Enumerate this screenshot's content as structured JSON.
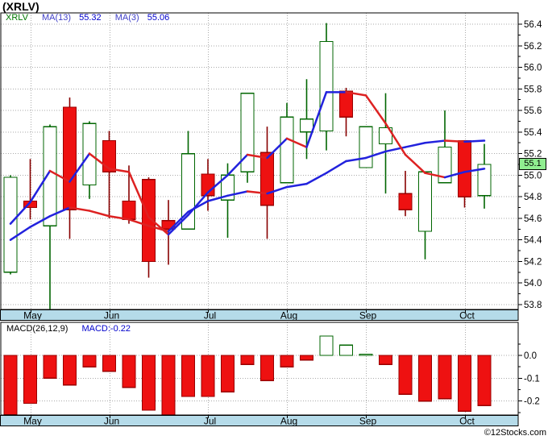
{
  "header": {
    "title": "(XRLV)"
  },
  "legend": {
    "symbol": "XRLV",
    "ma13_label": "MA(13)",
    "ma13_value": "55.32",
    "ma3_label": "MA(3)",
    "ma3_value": "55.06"
  },
  "price_badge": "55.1",
  "macd_legend": {
    "label": "MACD(26,12,9)",
    "value": "MACD:-0.22"
  },
  "watermark": "©12Stocks.com",
  "colors": {
    "candle_up_stroke": "#006600",
    "candle_up_fill": "#ffffff",
    "candle_down_stroke": "#990000",
    "candle_down_fill": "#ee1111",
    "wick_up": "#006600",
    "wick_down": "#880000",
    "ma_rising": "#2222dd",
    "ma_falling": "#dd2222",
    "grid": "#aaaaaa",
    "band_bg": "#b5dbe9",
    "badge_bg": "#90EE90",
    "macd_up": "#006600",
    "macd_down": "#ee1111",
    "border": "#000000"
  },
  "chart_data": {
    "type": "candlestick+macd",
    "symbol": "XRLV",
    "months": [
      "May",
      "Jun",
      "Jul",
      "Aug",
      "Sep",
      "Oct"
    ],
    "month_start_indices": [
      1,
      5,
      10,
      14,
      18,
      23
    ],
    "price_axis_ticks": [
      "56.4",
      "56.2",
      "56.0",
      "55.8",
      "55.6",
      "55.4",
      "55.2",
      "55.0",
      "54.8",
      "54.6",
      "54.4",
      "54.2",
      "54.0",
      "53.8"
    ],
    "price_axis_range": [
      53.8,
      56.4
    ],
    "last_price": 55.1,
    "candles_ohlc": [
      [
        54.1,
        55.0,
        54.08,
        54.98
      ],
      [
        54.76,
        55.15,
        54.59,
        54.7
      ],
      [
        54.53,
        55.47,
        53.76,
        55.45
      ],
      [
        55.63,
        55.72,
        54.41,
        54.68
      ],
      [
        54.91,
        55.5,
        54.78,
        55.48
      ],
      [
        55.32,
        55.41,
        54.6,
        55.03
      ],
      [
        54.76,
        55.09,
        54.55,
        54.59
      ],
      [
        54.96,
        54.98,
        54.05,
        54.2
      ],
      [
        54.58,
        54.77,
        54.17,
        54.5
      ],
      [
        54.5,
        55.41,
        54.5,
        55.2
      ],
      [
        55.01,
        55.15,
        54.67,
        54.81
      ],
      [
        54.77,
        55.11,
        54.42,
        55.0
      ],
      [
        55.03,
        55.76,
        54.93,
        55.76
      ],
      [
        55.21,
        55.45,
        54.41,
        54.72
      ],
      [
        54.93,
        55.67,
        54.93,
        55.54
      ],
      [
        55.4,
        55.89,
        55.15,
        55.52
      ],
      [
        55.41,
        56.41,
        55.23,
        56.24
      ],
      [
        55.78,
        55.81,
        55.36,
        55.54
      ],
      [
        55.07,
        55.45,
        55.07,
        55.45
      ],
      [
        55.29,
        55.76,
        54.83,
        55.44
      ],
      [
        54.83,
        55.04,
        54.62,
        54.68
      ],
      [
        54.48,
        55.03,
        54.22,
        55.03
      ],
      [
        54.93,
        55.6,
        54.93,
        55.26
      ],
      [
        55.32,
        55.32,
        54.7,
        54.8
      ],
      [
        54.81,
        55.29,
        54.69,
        55.1
      ]
    ],
    "ma3": [
      54.55,
      54.75,
      55.04,
      54.94,
      55.2,
      55.06,
      55.03,
      54.61,
      54.45,
      54.63,
      54.84,
      55.0,
      55.19,
      55.16,
      55.34,
      55.26,
      55.77,
      55.77,
      55.74,
      55.48,
      55.19,
      55.02,
      54.98,
      55.03,
      55.06
    ],
    "ma13": [
      54.4,
      54.52,
      54.62,
      54.7,
      54.67,
      54.62,
      54.59,
      54.53,
      54.48,
      54.66,
      54.76,
      54.81,
      54.85,
      54.83,
      54.89,
      54.92,
      55.02,
      55.13,
      55.16,
      55.22,
      55.26,
      55.3,
      55.32,
      55.31,
      55.32
    ],
    "macd": {
      "params": "26,12,9",
      "current": -0.22,
      "axis_ticks": [
        "0.0",
        "-0.1",
        "-0.2"
      ],
      "values": [
        -0.26,
        -0.21,
        -0.1,
        -0.13,
        -0.05,
        -0.07,
        -0.14,
        -0.24,
        -0.265,
        -0.18,
        -0.18,
        -0.16,
        -0.04,
        -0.11,
        -0.05,
        -0.02,
        0.085,
        0.045,
        0.005,
        -0.04,
        -0.17,
        -0.2,
        -0.19,
        -0.245,
        -0.22
      ]
    }
  }
}
